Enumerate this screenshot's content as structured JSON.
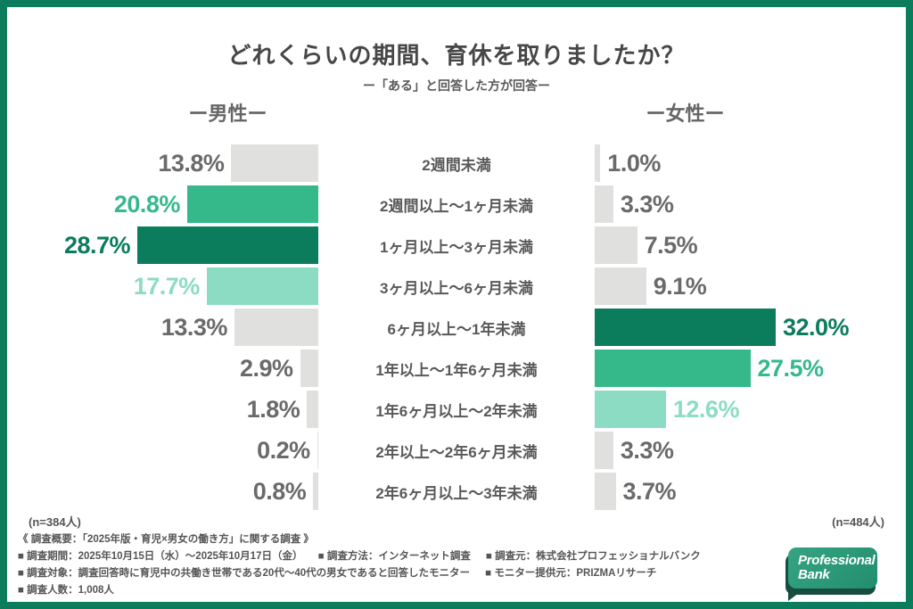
{
  "colors": {
    "frame_green": "#0B7C5C",
    "dark_green": "#0B7C5C",
    "medium_green": "#35B98A",
    "light_green": "#8BDCC2",
    "bar_gray": "#E0E0DF",
    "value_text_gray": "#6A6A6A",
    "category_text": "#595959",
    "header_text": "#666666",
    "footer_text": "#555555",
    "logo_green": "#2C9A7C",
    "logo_dark_green": "#174D3D"
  },
  "chart_data": {
    "type": "bar",
    "orientation": "horizontal_butterfly",
    "title": "どれくらいの期間、育休を取りましたか？",
    "subtitle": "ー「ある」と回答した方が回答ー",
    "unit": "%",
    "value_labels_shown": true,
    "grid": false,
    "legend": false,
    "xlim": [
      0,
      32
    ],
    "categories": [
      "2週間未満",
      "2週間以上〜1ヶ月未満",
      "1ヶ月以上〜3ヶ月未満",
      "3ヶ月以上〜6ヶ月未満",
      "6ヶ月以上〜1年未満",
      "1年以上〜1年6ヶ月未満",
      "1年6ヶ月以上〜2年未満",
      "2年以上〜2年6ヶ月未満",
      "2年6ヶ月以上〜3年未満"
    ],
    "series": [
      {
        "name": "男性",
        "header_label": "ー男性ー",
        "n_label": "(n=384人)",
        "values": [
          13.8,
          20.8,
          28.7,
          17.7,
          13.3,
          2.9,
          1.8,
          0.2,
          0.8
        ],
        "emphasis": [
          "none",
          "medium",
          "dark",
          "light",
          "none",
          "none",
          "none",
          "none",
          "none"
        ]
      },
      {
        "name": "女性",
        "header_label": "ー女性ー",
        "n_label": "(n=484人)",
        "values": [
          1.0,
          3.3,
          7.5,
          9.1,
          32.0,
          27.5,
          12.6,
          3.3,
          3.7
        ],
        "emphasis": [
          "none",
          "none",
          "none",
          "none",
          "dark",
          "medium",
          "light",
          "none",
          "none"
        ]
      }
    ]
  },
  "footer": {
    "overview": "《 調査概要：「2025年版・育児×男女の働き方」に関する調査 》",
    "line2": [
      "■ 調査期間：2025年10月15日（水）〜2025年10月17日（金）",
      "■ 調査方法：インターネット調査",
      "■ 調査元：株式会社プロフェッショナルバンク"
    ],
    "line3": [
      "■ 調査対象：調査回答時に育児中の共働き世帯である20代〜40代の男女であると回答したモニター",
      "■ モニター提供元：PRIZMAリサーチ"
    ],
    "line4": [
      "■ 調査人数：1,008人"
    ]
  },
  "logo": {
    "line1": "Professional",
    "line2": "Bank"
  }
}
